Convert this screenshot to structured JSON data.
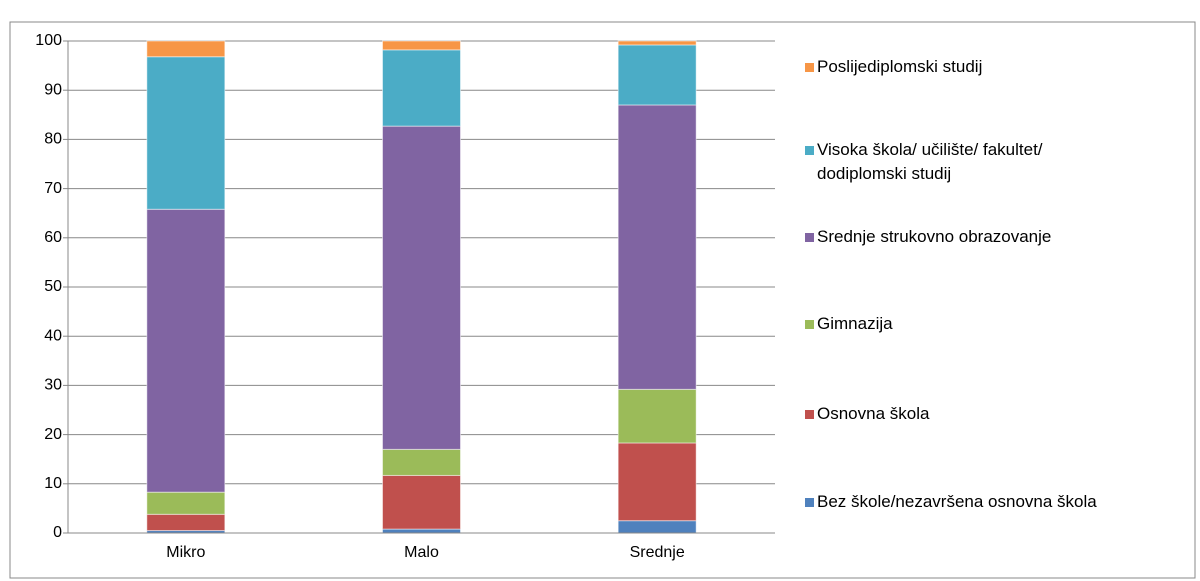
{
  "chart_data": {
    "type": "bar",
    "stacked": true,
    "categories": [
      "Mikro",
      "Malo",
      "Srednje"
    ],
    "series": [
      {
        "name": "Bez škole/nezavršena osnovna škola",
        "color": "#4f81bd",
        "values": [
          0.5,
          0.8,
          2.5
        ]
      },
      {
        "name": "Osnovna škola",
        "color": "#c0504d",
        "values": [
          3.3,
          10.9,
          15.8
        ]
      },
      {
        "name": "Gimnazija",
        "color": "#9bbb59",
        "values": [
          4.5,
          5.3,
          10.9
        ]
      },
      {
        "name": "Srednje strukovno obrazovanje",
        "color": "#8064a2",
        "values": [
          57.5,
          65.7,
          57.8
        ]
      },
      {
        "name": "Visoka škola/ učilište/ fakultet/ dodiplomski studij",
        "color": "#4bacc6",
        "values": [
          31,
          15.5,
          12.2
        ]
      },
      {
        "name": "Poslijediplomski studij",
        "color": "#f79646",
        "values": [
          3.2,
          1.8,
          0.8
        ]
      }
    ],
    "ylim": [
      0,
      100
    ],
    "yticks": [
      0,
      10,
      20,
      30,
      40,
      50,
      60,
      70,
      80,
      90,
      100
    ],
    "grid": true,
    "legend": "right"
  }
}
